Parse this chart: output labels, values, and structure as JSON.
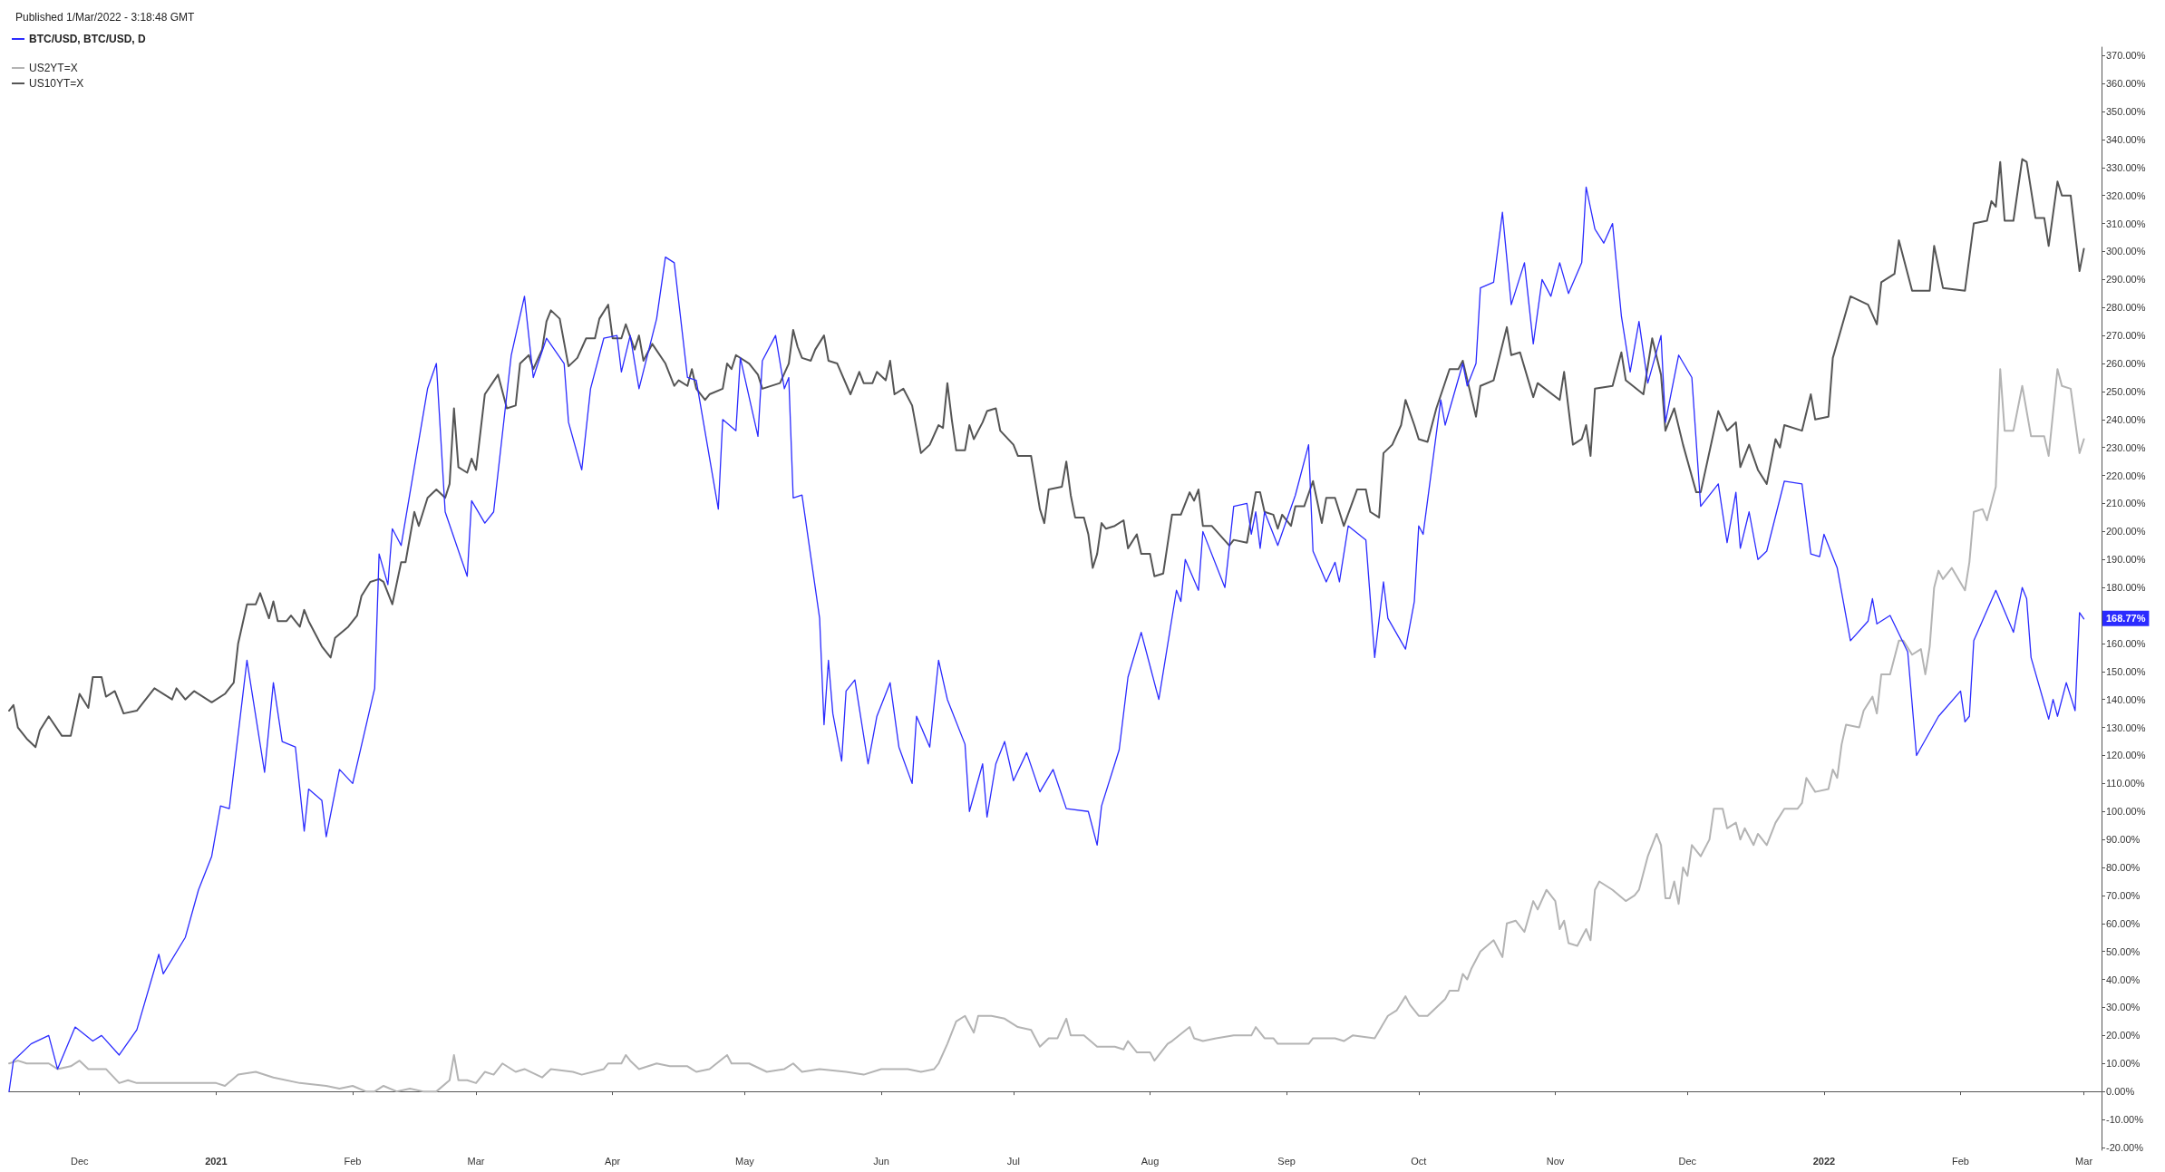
{
  "chart_data": {
    "type": "line",
    "title": "Published 1/Mar/2022 - 3:18:48 GMT",
    "legend": "top left",
    "xlim": [
      "2020-11-15",
      "2022-03-05"
    ],
    "xticks": [
      {
        "value": "2020-12-01",
        "label": "Dec"
      },
      {
        "value": "2021-01-01",
        "label": "2021"
      },
      {
        "value": "2021-02-01",
        "label": "Feb"
      },
      {
        "value": "2021-03-01",
        "label": "Mar"
      },
      {
        "value": "2021-04-01",
        "label": "Apr"
      },
      {
        "value": "2021-05-01",
        "label": "May"
      },
      {
        "value": "2021-06-01",
        "label": "Jun"
      },
      {
        "value": "2021-07-01",
        "label": "Jul"
      },
      {
        "value": "2021-08-01",
        "label": "Aug"
      },
      {
        "value": "2021-09-01",
        "label": "Sep"
      },
      {
        "value": "2021-10-01",
        "label": "Oct"
      },
      {
        "value": "2021-11-01",
        "label": "Nov"
      },
      {
        "value": "2021-12-01",
        "label": "Dec"
      },
      {
        "value": "2022-01-01",
        "label": "2022"
      },
      {
        "value": "2022-02-01",
        "label": "Feb"
      },
      {
        "value": "2022-03-01",
        "label": "Mar"
      }
    ],
    "ylim": [
      -21,
      373
    ],
    "yticks": [
      {
        "value": -20,
        "label": "-20.00%"
      },
      {
        "value": -10,
        "label": "-10.00%"
      },
      {
        "value": 0,
        "label": "0.00%"
      },
      {
        "value": 10,
        "label": "10.00%"
      },
      {
        "value": 20,
        "label": "20.00%"
      },
      {
        "value": 30,
        "label": "30.00%"
      },
      {
        "value": 40,
        "label": "40.00%"
      },
      {
        "value": 50,
        "label": "50.00%"
      },
      {
        "value": 60,
        "label": "60.00%"
      },
      {
        "value": 70,
        "label": "70.00%"
      },
      {
        "value": 80,
        "label": "80.00%"
      },
      {
        "value": 90,
        "label": "90.00%"
      },
      {
        "value": 100,
        "label": "100.00%"
      },
      {
        "value": 110,
        "label": "110.00%"
      },
      {
        "value": 120,
        "label": "120.00%"
      },
      {
        "value": 130,
        "label": "130.00%"
      },
      {
        "value": 140,
        "label": "140.00%"
      },
      {
        "value": 150,
        "label": "150.00%"
      },
      {
        "value": 160,
        "label": "160.00%"
      },
      {
        "value": 170,
        "label": null
      },
      {
        "value": 180,
        "label": "180.00%"
      },
      {
        "value": 190,
        "label": "190.00%"
      },
      {
        "value": 200,
        "label": "200.00%"
      },
      {
        "value": 210,
        "label": "210.00%"
      },
      {
        "value": 220,
        "label": "220.00%"
      },
      {
        "value": 230,
        "label": "230.00%"
      },
      {
        "value": 240,
        "label": "240.00%"
      },
      {
        "value": 250,
        "label": "250.00%"
      },
      {
        "value": 260,
        "label": "260.00%"
      },
      {
        "value": 270,
        "label": "270.00%"
      },
      {
        "value": 280,
        "label": "280.00%"
      },
      {
        "value": 290,
        "label": "290.00%"
      },
      {
        "value": 300,
        "label": "300.00%"
      },
      {
        "value": 310,
        "label": "310.00%"
      },
      {
        "value": 320,
        "label": "320.00%"
      },
      {
        "value": 330,
        "label": "330.00%"
      },
      {
        "value": 340,
        "label": "340.00%"
      },
      {
        "value": 350,
        "label": "350.00%"
      },
      {
        "value": 360,
        "label": "360.00%"
      },
      {
        "value": 370,
        "label": "370.00%"
      }
    ],
    "annotations": [
      {
        "text": "168.77%",
        "x": "2022-03-01",
        "y": 168.77
      }
    ],
    "series": [
      {
        "name": "BTC/USD, BTC/USD, D",
        "color": "#2b2bff",
        "x": [
          "2020-11-15",
          "2020-11-16",
          "2020-11-20",
          "2020-11-24",
          "2020-11-26",
          "2020-11-30",
          "2020-12-04",
          "2020-12-06",
          "2020-12-10",
          "2020-12-14",
          "2020-12-19",
          "2020-12-20",
          "2020-12-25",
          "2020-12-28",
          "2020-12-31",
          "2021-01-02",
          "2021-01-04",
          "2021-01-08",
          "2021-01-12",
          "2021-01-14",
          "2021-01-16",
          "2021-01-19",
          "2021-01-21",
          "2021-01-22",
          "2021-01-25",
          "2021-01-26",
          "2021-01-29",
          "2021-02-01",
          "2021-02-06",
          "2021-02-07",
          "2021-02-09",
          "2021-02-10",
          "2021-02-12",
          "2021-02-18",
          "2021-02-20",
          "2021-02-22",
          "2021-02-27",
          "2021-02-28",
          "2021-03-03",
          "2021-03-05",
          "2021-03-09",
          "2021-03-12",
          "2021-03-14",
          "2021-03-17",
          "2021-03-21",
          "2021-03-22",
          "2021-03-25",
          "2021-03-27",
          "2021-03-30",
          "2021-04-02",
          "2021-04-03",
          "2021-04-05",
          "2021-04-07",
          "2021-04-11",
          "2021-04-13",
          "2021-04-15",
          "2021-04-18",
          "2021-04-20",
          "2021-04-25",
          "2021-04-26",
          "2021-04-29",
          "2021-04-30",
          "2021-05-04",
          "2021-05-05",
          "2021-05-08",
          "2021-05-10",
          "2021-05-11",
          "2021-05-12",
          "2021-05-14",
          "2021-05-18",
          "2021-05-19",
          "2021-05-20",
          "2021-05-21",
          "2021-05-23",
          "2021-05-24",
          "2021-05-26",
          "2021-05-29",
          "2021-05-31",
          "2021-06-03",
          "2021-06-05",
          "2021-06-08",
          "2021-06-09",
          "2021-06-12",
          "2021-06-14",
          "2021-06-16",
          "2021-06-20",
          "2021-06-21",
          "2021-06-24",
          "2021-06-25",
          "2021-06-27",
          "2021-06-29",
          "2021-07-01",
          "2021-07-04",
          "2021-07-07",
          "2021-07-10",
          "2021-07-13",
          "2021-07-18",
          "2021-07-20",
          "2021-07-21",
          "2021-07-25",
          "2021-07-27",
          "2021-07-30",
          "2021-08-03",
          "2021-08-07",
          "2021-08-08",
          "2021-08-09",
          "2021-08-12",
          "2021-08-13",
          "2021-08-18",
          "2021-08-20",
          "2021-08-23",
          "2021-08-24",
          "2021-08-25",
          "2021-08-26",
          "2021-08-27",
          "2021-08-30",
          "2021-09-03",
          "2021-09-06",
          "2021-09-07",
          "2021-09-10",
          "2021-09-12",
          "2021-09-13",
          "2021-09-15",
          "2021-09-19",
          "2021-09-21",
          "2021-09-23",
          "2021-09-24",
          "2021-09-28",
          "2021-09-30",
          "2021-10-01",
          "2021-10-02",
          "2021-10-06",
          "2021-10-07",
          "2021-10-11",
          "2021-10-12",
          "2021-10-14",
          "2021-10-15",
          "2021-10-18",
          "2021-10-20",
          "2021-10-22",
          "2021-10-25",
          "2021-10-27",
          "2021-10-29",
          "2021-10-31",
          "2021-11-02",
          "2021-11-04",
          "2021-11-07",
          "2021-11-08",
          "2021-11-10",
          "2021-11-12",
          "2021-11-14",
          "2021-11-16",
          "2021-11-18",
          "2021-11-20",
          "2021-11-22",
          "2021-11-25",
          "2021-11-26",
          "2021-11-29",
          "2021-12-02",
          "2021-12-04",
          "2021-12-08",
          "2021-12-10",
          "2021-12-12",
          "2021-12-13",
          "2021-12-15",
          "2021-12-17",
          "2021-12-19",
          "2021-12-23",
          "2021-12-27",
          "2021-12-29",
          "2021-12-31",
          "2022-01-01",
          "2022-01-04",
          "2022-01-07",
          "2022-01-11",
          "2022-01-12",
          "2022-01-13",
          "2022-01-16",
          "2022-01-20",
          "2022-01-22",
          "2022-01-27",
          "2022-02-01",
          "2022-02-02",
          "2022-02-03",
          "2022-02-04",
          "2022-02-09",
          "2022-02-13",
          "2022-02-15",
          "2022-02-16",
          "2022-02-17",
          "2022-02-21",
          "2022-02-22",
          "2022-02-23",
          "2022-02-25",
          "2022-02-27",
          "2022-02-28",
          "2022-03-01"
        ],
        "values": [
          0,
          11,
          17,
          20,
          8,
          23,
          18,
          20,
          13,
          22,
          49,
          42,
          55,
          72,
          84,
          102,
          101,
          154,
          114,
          146,
          125,
          123,
          93,
          108,
          104,
          91,
          115,
          110,
          144,
          192,
          181,
          201,
          195,
          251,
          260,
          207,
          184,
          211,
          203,
          207,
          263,
          284,
          255,
          269,
          260,
          239,
          222,
          251,
          269,
          270,
          257,
          270,
          251,
          276,
          298,
          296,
          255,
          254,
          208,
          240,
          236,
          262,
          234,
          261,
          270,
          251,
          255,
          212,
          213,
          169,
          131,
          154,
          135,
          118,
          143,
          147,
          117,
          134,
          146,
          123,
          110,
          134,
          123,
          154,
          140,
          124,
          100,
          117,
          98,
          117,
          125,
          111,
          121,
          107,
          115,
          101,
          100,
          88,
          102,
          122,
          148,
          164,
          140,
          179,
          175,
          190,
          179,
          200,
          180,
          209,
          210,
          199,
          207,
          194,
          207,
          195,
          213,
          231,
          193,
          182,
          189,
          182,
          202,
          197,
          155,
          182,
          169,
          158,
          175,
          202,
          199,
          247,
          238,
          260,
          252,
          260,
          287,
          289,
          314,
          281,
          296,
          267,
          290,
          284,
          296,
          285,
          296,
          323,
          308,
          303,
          310,
          277,
          257,
          275,
          253,
          270,
          239,
          263,
          255,
          209,
          217,
          196,
          214,
          194,
          207,
          190,
          193,
          218,
          217,
          192,
          191,
          199,
          187,
          161,
          168,
          176,
          167,
          170,
          157,
          120,
          134,
          143,
          132,
          134,
          161,
          179,
          164,
          180,
          176,
          155,
          133,
          140,
          134,
          146,
          136,
          171,
          168.77
        ]
      },
      {
        "name": "US2YT=X",
        "color": "#b4b4b4",
        "x": [
          "2020-11-15",
          "2020-11-17",
          "2020-11-19",
          "2020-11-24",
          "2020-11-26",
          "2020-11-29",
          "2020-12-01",
          "2020-12-03",
          "2020-12-07",
          "2020-12-10",
          "2020-12-12",
          "2020-12-14",
          "2020-12-17",
          "2020-12-26",
          "2021-01-01",
          "2021-01-03",
          "2021-01-06",
          "2021-01-10",
          "2021-01-14",
          "2021-01-20",
          "2021-01-26",
          "2021-01-29",
          "2021-02-01",
          "2021-02-04",
          "2021-02-06",
          "2021-02-08",
          "2021-02-11",
          "2021-02-14",
          "2021-02-17",
          "2021-02-20",
          "2021-02-23",
          "2021-02-24",
          "2021-02-25",
          "2021-02-27",
          "2021-03-01",
          "2021-03-03",
          "2021-03-05",
          "2021-03-07",
          "2021-03-10",
          "2021-03-12",
          "2021-03-16",
          "2021-03-18",
          "2021-03-23",
          "2021-03-25",
          "2021-03-30",
          "2021-03-31",
          "2021-04-03",
          "2021-04-04",
          "2021-04-05",
          "2021-04-07",
          "2021-04-11",
          "2021-04-14",
          "2021-04-18",
          "2021-04-20",
          "2021-04-23",
          "2021-04-27",
          "2021-04-28",
          "2021-05-02",
          "2021-05-06",
          "2021-05-10",
          "2021-05-12",
          "2021-05-14",
          "2021-05-18",
          "2021-05-24",
          "2021-05-28",
          "2021-06-01",
          "2021-06-07",
          "2021-06-10",
          "2021-06-13",
          "2021-06-14",
          "2021-06-16",
          "2021-06-18",
          "2021-06-20",
          "2021-06-22",
          "2021-06-23",
          "2021-06-26",
          "2021-06-29",
          "2021-07-02",
          "2021-07-05",
          "2021-07-07",
          "2021-07-09",
          "2021-07-11",
          "2021-07-13",
          "2021-07-14",
          "2021-07-17",
          "2021-07-20",
          "2021-07-24",
          "2021-07-26",
          "2021-07-27",
          "2021-07-29",
          "2021-08-01",
          "2021-08-02",
          "2021-08-05",
          "2021-08-06",
          "2021-08-10",
          "2021-08-11",
          "2021-08-13",
          "2021-08-16",
          "2021-08-20",
          "2021-08-24",
          "2021-08-25",
          "2021-08-27",
          "2021-08-29",
          "2021-08-30",
          "2021-09-06",
          "2021-09-07",
          "2021-09-12",
          "2021-09-14",
          "2021-09-16",
          "2021-09-21",
          "2021-09-24",
          "2021-09-26",
          "2021-09-28",
          "2021-09-29",
          "2021-10-01",
          "2021-10-03",
          "2021-10-05",
          "2021-10-07",
          "2021-10-08",
          "2021-10-10",
          "2021-10-11",
          "2021-10-12",
          "2021-10-13",
          "2021-10-15",
          "2021-10-18",
          "2021-10-20",
          "2021-10-21",
          "2021-10-23",
          "2021-10-25",
          "2021-10-27",
          "2021-10-28",
          "2021-10-30",
          "2021-11-01",
          "2021-11-02",
          "2021-11-03",
          "2021-11-04",
          "2021-11-06",
          "2021-11-08",
          "2021-11-09",
          "2021-11-10",
          "2021-11-11",
          "2021-11-14",
          "2021-11-17",
          "2021-11-19",
          "2021-11-20",
          "2021-11-22",
          "2021-11-24",
          "2021-11-25",
          "2021-11-26",
          "2021-11-27",
          "2021-11-28",
          "2021-11-29",
          "2021-11-30",
          "2021-12-01",
          "2021-12-02",
          "2021-12-04",
          "2021-12-06",
          "2021-12-07",
          "2021-12-09",
          "2021-12-10",
          "2021-12-12",
          "2021-12-13",
          "2021-12-14",
          "2021-12-16",
          "2021-12-17",
          "2021-12-19",
          "2021-12-21",
          "2021-12-23",
          "2021-12-26",
          "2021-12-27",
          "2021-12-28",
          "2021-12-30",
          "2022-01-02",
          "2022-01-03",
          "2022-01-04",
          "2022-01-05",
          "2022-01-06",
          "2022-01-09",
          "2022-01-10",
          "2022-01-12",
          "2022-01-13",
          "2022-01-14",
          "2022-01-16",
          "2022-01-18",
          "2022-01-19",
          "2022-01-21",
          "2022-01-23",
          "2022-01-24",
          "2022-01-25",
          "2022-01-26",
          "2022-01-27",
          "2022-01-28",
          "2022-01-30",
          "2022-02-02",
          "2022-02-03",
          "2022-02-04",
          "2022-02-06",
          "2022-02-07",
          "2022-02-09",
          "2022-02-10",
          "2022-02-11",
          "2022-02-13",
          "2022-02-15",
          "2022-02-17",
          "2022-02-20",
          "2022-02-21",
          "2022-02-23",
          "2022-02-24",
          "2022-02-26",
          "2022-02-28",
          "2022-03-01"
        ],
        "values": [
          10,
          11,
          10,
          10,
          8,
          9,
          11,
          8,
          8,
          3,
          4,
          3,
          3,
          3,
          3,
          2,
          6,
          7,
          5,
          3,
          2,
          1,
          2,
          0,
          0,
          2,
          0,
          1,
          0,
          0,
          4,
          13,
          4,
          4,
          3,
          7,
          6,
          10,
          7,
          8,
          5,
          8,
          7,
          6,
          8,
          10,
          10,
          13,
          11,
          8,
          10,
          9,
          9,
          7,
          8,
          13,
          10,
          10,
          7,
          8,
          10,
          7,
          8,
          7,
          6,
          8,
          8,
          7,
          8,
          10,
          17,
          25,
          27,
          21,
          27,
          27,
          26,
          23,
          22,
          16,
          19,
          19,
          26,
          20,
          20,
          16,
          16,
          15,
          18,
          14,
          14,
          11,
          17,
          18,
          23,
          19,
          18,
          19,
          20,
          20,
          23,
          19,
          19,
          17,
          17,
          19,
          19,
          18,
          20,
          19,
          27,
          29,
          34,
          31,
          27,
          27,
          30,
          33,
          36,
          36,
          42,
          40,
          44,
          50,
          54,
          48,
          60,
          61,
          57,
          68,
          65,
          72,
          68,
          58,
          61,
          53,
          52,
          58,
          54,
          72,
          75,
          72,
          68,
          70,
          72,
          84,
          92,
          88,
          69,
          69,
          75,
          67,
          80,
          77,
          88,
          84,
          90,
          101,
          101,
          94,
          96,
          90,
          94,
          88,
          92,
          88,
          96,
          101,
          101,
          103,
          112,
          107,
          108,
          115,
          112,
          124,
          131,
          130,
          136,
          141,
          135,
          149,
          149,
          161,
          161,
          156,
          158,
          149,
          159,
          180,
          186,
          183,
          187,
          179,
          189,
          207,
          208,
          204,
          216,
          258,
          236,
          236,
          252,
          234,
          234,
          227,
          258,
          252,
          251,
          228,
          233
        ]
      },
      {
        "name": "US10YT=X",
        "color": "#555555",
        "x": [
          "2020-11-15",
          "2020-11-16",
          "2020-11-17",
          "2020-11-19",
          "2020-11-21",
          "2020-11-22",
          "2020-11-24",
          "2020-11-27",
          "2020-11-29",
          "2020-12-01",
          "2020-12-03",
          "2020-12-04",
          "2020-12-06",
          "2020-12-07",
          "2020-12-09",
          "2020-12-11",
          "2020-12-14",
          "2020-12-18",
          "2020-12-22",
          "2020-12-23",
          "2020-12-25",
          "2020-12-27",
          "2020-12-31",
          "2021-01-03",
          "2021-01-05",
          "2021-01-06",
          "2021-01-08",
          "2021-01-10",
          "2021-01-11",
          "2021-01-13",
          "2021-01-14",
          "2021-01-15",
          "2021-01-17",
          "2021-01-18",
          "2021-01-20",
          "2021-01-21",
          "2021-01-22",
          "2021-01-25",
          "2021-01-27",
          "2021-01-28",
          "2021-01-31",
          "2021-02-02",
          "2021-02-03",
          "2021-02-05",
          "2021-02-07",
          "2021-02-08",
          "2021-02-10",
          "2021-02-12",
          "2021-02-13",
          "2021-02-15",
          "2021-02-16",
          "2021-02-18",
          "2021-02-20",
          "2021-02-22",
          "2021-02-23",
          "2021-02-24",
          "2021-02-25",
          "2021-02-27",
          "2021-02-28",
          "2021-03-01",
          "2021-03-03",
          "2021-03-06",
          "2021-03-08",
          "2021-03-10",
          "2021-03-11",
          "2021-03-13",
          "2021-03-14",
          "2021-03-16",
          "2021-03-17",
          "2021-03-18",
          "2021-03-20",
          "2021-03-22",
          "2021-03-24",
          "2021-03-26",
          "2021-03-28",
          "2021-03-29",
          "2021-03-31",
          "2021-04-01",
          "2021-04-03",
          "2021-04-04",
          "2021-04-06",
          "2021-04-07",
          "2021-04-08",
          "2021-04-10",
          "2021-04-13",
          "2021-04-15",
          "2021-04-16",
          "2021-04-18",
          "2021-04-19",
          "2021-04-20",
          "2021-04-22",
          "2021-04-23",
          "2021-04-26",
          "2021-04-27",
          "2021-04-28",
          "2021-04-29",
          "2021-05-02",
          "2021-05-04",
          "2021-05-05",
          "2021-05-09",
          "2021-05-11",
          "2021-05-12",
          "2021-05-13",
          "2021-05-14",
          "2021-05-16",
          "2021-05-17",
          "2021-05-19",
          "2021-05-20",
          "2021-05-22",
          "2021-05-25",
          "2021-05-27",
          "2021-05-28",
          "2021-05-30",
          "2021-05-31",
          "2021-06-02",
          "2021-06-03",
          "2021-06-04",
          "2021-06-06",
          "2021-06-08",
          "2021-06-10",
          "2021-06-12",
          "2021-06-14",
          "2021-06-15",
          "2021-06-16",
          "2021-06-17",
          "2021-06-18",
          "2021-06-20",
          "2021-06-21",
          "2021-06-22",
          "2021-06-24",
          "2021-06-25",
          "2021-06-27",
          "2021-06-28",
          "2021-07-01",
          "2021-07-02",
          "2021-07-05",
          "2021-07-07",
          "2021-07-08",
          "2021-07-09",
          "2021-07-12",
          "2021-07-13",
          "2021-07-14",
          "2021-07-15",
          "2021-07-17",
          "2021-07-18",
          "2021-07-19",
          "2021-07-20",
          "2021-07-21",
          "2021-07-22",
          "2021-07-24",
          "2021-07-26",
          "2021-07-27",
          "2021-07-29",
          "2021-07-30",
          "2021-08-01",
          "2021-08-02",
          "2021-08-04",
          "2021-08-06",
          "2021-08-08",
          "2021-08-10",
          "2021-08-11",
          "2021-08-12",
          "2021-08-13",
          "2021-08-15",
          "2021-08-19",
          "2021-08-20",
          "2021-08-23",
          "2021-08-25",
          "2021-08-26",
          "2021-08-27",
          "2021-08-29",
          "2021-08-30",
          "2021-08-31",
          "2021-09-02",
          "2021-09-03",
          "2021-09-05",
          "2021-09-07",
          "2021-09-09",
          "2021-09-10",
          "2021-09-12",
          "2021-09-14",
          "2021-09-17",
          "2021-09-19",
          "2021-09-20",
          "2021-09-22",
          "2021-09-23",
          "2021-09-25",
          "2021-09-27",
          "2021-09-28",
          "2021-09-30",
          "2021-10-01",
          "2021-10-03",
          "2021-10-05",
          "2021-10-08",
          "2021-10-10",
          "2021-10-11",
          "2021-10-14",
          "2021-10-15",
          "2021-10-18",
          "2021-10-21",
          "2021-10-22",
          "2021-10-24",
          "2021-10-27",
          "2021-10-28",
          "2021-11-02",
          "2021-11-03",
          "2021-11-05",
          "2021-11-07",
          "2021-11-08",
          "2021-11-09",
          "2021-11-10",
          "2021-11-14",
          "2021-11-16",
          "2021-11-17",
          "2021-11-21",
          "2021-11-23",
          "2021-11-25",
          "2021-11-26",
          "2021-11-28",
          "2021-11-30",
          "2021-12-03",
          "2021-12-04",
          "2021-12-08",
          "2021-12-10",
          "2021-12-12",
          "2021-12-13",
          "2021-12-15",
          "2021-12-17",
          "2021-12-19",
          "2021-12-21",
          "2021-12-22",
          "2021-12-23",
          "2021-12-27",
          "2021-12-29",
          "2021-12-30",
          "2022-01-02",
          "2022-01-03",
          "2022-01-07",
          "2022-01-11",
          "2022-01-13",
          "2022-01-14",
          "2022-01-17",
          "2022-01-18",
          "2022-01-21",
          "2022-01-25",
          "2022-01-26",
          "2022-01-28",
          "2022-02-02",
          "2022-02-04",
          "2022-02-07",
          "2022-02-08",
          "2022-02-09",
          "2022-02-10",
          "2022-02-11",
          "2022-02-13",
          "2022-02-15",
          "2022-02-16",
          "2022-02-18",
          "2022-02-20",
          "2022-02-21",
          "2022-02-23",
          "2022-02-24",
          "2022-02-26",
          "2022-02-28",
          "2022-03-01"
        ],
        "values": [
          136,
          138,
          130,
          126,
          123,
          129,
          134,
          127,
          127,
          142,
          137,
          148,
          148,
          141,
          143,
          135,
          136,
          144,
          140,
          144,
          140,
          143,
          139,
          142,
          146,
          160,
          174,
          174,
          178,
          169,
          175,
          168,
          168,
          170,
          166,
          172,
          168,
          159,
          155,
          162,
          166,
          170,
          177,
          182,
          183,
          182,
          174,
          189,
          189,
          207,
          202,
          212,
          215,
          212,
          217,
          244,
          223,
          221,
          226,
          222,
          249,
          256,
          244,
          245,
          260,
          263,
          258,
          265,
          275,
          279,
          276,
          259,
          262,
          269,
          269,
          276,
          281,
          269,
          269,
          274,
          265,
          270,
          261,
          267,
          260,
          252,
          254,
          252,
          258,
          251,
          247,
          249,
          251,
          260,
          258,
          263,
          260,
          256,
          251,
          253,
          260,
          272,
          266,
          262,
          261,
          265,
          270,
          261,
          260,
          249,
          257,
          253,
          253,
          257,
          254,
          261,
          249,
          251,
          245,
          228,
          231,
          238,
          237,
          253,
          240,
          229,
          229,
          238,
          233,
          239,
          243,
          244,
          236,
          231,
          227,
          227,
          208,
          203,
          215,
          216,
          225,
          213,
          205,
          205,
          199,
          187,
          192,
          203,
          201,
          202,
          204,
          194,
          199,
          192,
          192,
          184,
          185,
          206,
          206,
          214,
          211,
          215,
          202,
          202,
          195,
          197,
          196,
          214,
          214,
          207,
          206,
          201,
          206,
          202,
          209,
          209,
          218,
          203,
          212,
          212,
          202,
          215,
          215,
          207,
          205,
          228,
          231,
          238,
          247,
          238,
          233,
          232,
          244,
          258,
          258,
          261,
          241,
          252,
          254,
          273,
          263,
          264,
          248,
          253,
          247,
          257,
          231,
          233,
          238,
          227,
          251,
          252,
          264,
          254,
          249,
          269,
          256,
          236,
          244,
          231,
          214,
          214,
          243,
          236,
          239,
          223,
          231,
          222,
          217,
          233,
          230,
          238,
          236,
          249,
          240,
          241,
          262,
          284,
          281,
          274,
          289,
          292,
          304,
          286,
          286,
          302,
          287,
          286,
          310,
          311,
          318,
          316,
          332,
          311,
          311,
          333,
          332,
          312,
          312,
          302,
          325,
          320,
          320,
          293,
          301
        ]
      }
    ]
  }
}
